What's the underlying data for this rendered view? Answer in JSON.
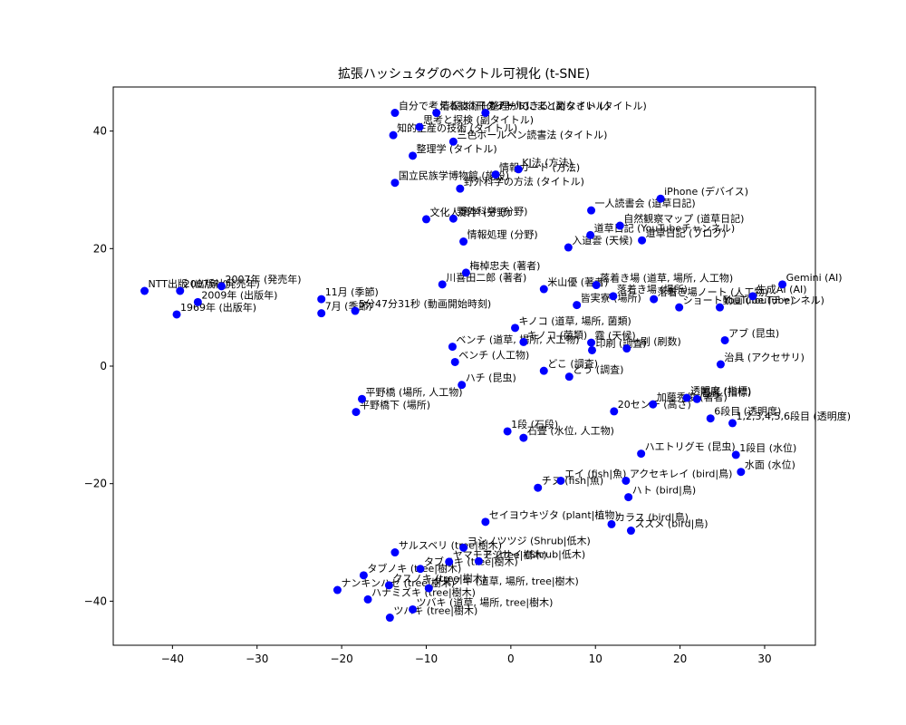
{
  "chart_data": {
    "type": "scatter",
    "title": "拡張ハッシュタグのベクトル可視化 (t-SNE)",
    "xlabel": "",
    "ylabel": "",
    "xlim": [
      -47,
      36
    ],
    "ylim": [
      -47.5,
      47.5
    ],
    "xticks": [
      -40,
      -30,
      -20,
      -10,
      0,
      10,
      20,
      30
    ],
    "yticks": [
      -40,
      -20,
      0,
      20,
      40
    ],
    "xtick_labels": [
      "−40",
      "−30",
      "−20",
      "−10",
      "0",
      "10",
      "20",
      "30"
    ],
    "ytick_labels": [
      "−40",
      "−20",
      "0",
      "20",
      "40"
    ],
    "grid": false,
    "marker_color": "#0000ff",
    "points": [
      {
        "x": -13.7,
        "y": 43.1,
        "label": "自分で考える技術 (タイトル)"
      },
      {
        "x": -8.8,
        "y": 43.1,
        "label": "情報は1冊のノートにまとめなさい (タイトル)"
      },
      {
        "x": -3.0,
        "y": 43.1,
        "label": "整理ができる (副タイトル)"
      },
      {
        "x": -10.8,
        "y": 40.7,
        "label": "思考と探検 (副タイトル)"
      },
      {
        "x": -13.9,
        "y": 39.3,
        "label": "知的生産の技術 (タイトル)"
      },
      {
        "x": -6.8,
        "y": 38.2,
        "label": "三色ボールペン読書法 (タイトル)"
      },
      {
        "x": -11.6,
        "y": 35.8,
        "label": "整理学 (タイトル)"
      },
      {
        "x": -1.8,
        "y": 32.6,
        "label": "情報カード (方法)"
      },
      {
        "x": 0.9,
        "y": 33.5,
        "label": "KJ法 (方法)"
      },
      {
        "x": -13.7,
        "y": 31.2,
        "label": "国立民族学博物館 (施設)"
      },
      {
        "x": -6.0,
        "y": 30.2,
        "label": "野外科学の方法 (タイトル)"
      },
      {
        "x": 17.7,
        "y": 28.5,
        "label": "iPhone (デバイス)"
      },
      {
        "x": 9.5,
        "y": 26.5,
        "label": "一人読書会 (道草日記)"
      },
      {
        "x": -10.0,
        "y": 25.0,
        "label": "文化人類学 (分野)"
      },
      {
        "x": -6.8,
        "y": 25.1,
        "label": "野外科学 (分野)"
      },
      {
        "x": 12.9,
        "y": 23.9,
        "label": "自然観察マップ (道草日記)"
      },
      {
        "x": 9.4,
        "y": 22.3,
        "label": "道草日記 (YouTubeチャンネル)"
      },
      {
        "x": 15.5,
        "y": 21.4,
        "label": "道草日記 (ブログ)"
      },
      {
        "x": 6.8,
        "y": 20.2,
        "label": "入道雲 (天候)"
      },
      {
        "x": -5.6,
        "y": 21.2,
        "label": "情報処理 (分野)"
      },
      {
        "x": -5.3,
        "y": 15.9,
        "label": "梅棹忠夫 (著者)"
      },
      {
        "x": -8.1,
        "y": 13.9,
        "label": "川喜田二郎 (著者)"
      },
      {
        "x": 3.9,
        "y": 13.1,
        "label": "米山優 (著者)"
      },
      {
        "x": 10.1,
        "y": 13.8,
        "label": "落着き場 (道草, 場所, 人工物)"
      },
      {
        "x": 12.1,
        "y": 11.9,
        "label": "落着き場 (場所)"
      },
      {
        "x": 16.9,
        "y": 11.4,
        "label": "落着き場ノート (人工物)"
      },
      {
        "x": 7.8,
        "y": 10.4,
        "label": "皆実寮 (場所)"
      },
      {
        "x": 19.9,
        "y": 10.0,
        "label": "ショート動画 (YouTube)"
      },
      {
        "x": 24.7,
        "y": 10.0,
        "label": "YouTube (チャンネル)"
      },
      {
        "x": 28.6,
        "y": 11.9,
        "label": "生成AI (AI)"
      },
      {
        "x": 32.1,
        "y": 13.9,
        "label": "Gemini (AI)"
      },
      {
        "x": -43.3,
        "y": 12.8,
        "label": "NTT出版 (出版社)"
      },
      {
        "x": -39.1,
        "y": 12.8,
        "label": "2007年 (発売年)"
      },
      {
        "x": -34.2,
        "y": 13.6,
        "label": "2007年 (発売年)"
      },
      {
        "x": -37.0,
        "y": 10.9,
        "label": "2009年 (出版年)"
      },
      {
        "x": -39.5,
        "y": 8.8,
        "label": "1969年 (出版年)"
      },
      {
        "x": -22.4,
        "y": 11.4,
        "label": "11月 (季節)"
      },
      {
        "x": -22.4,
        "y": 9.0,
        "label": "7月 (季節)"
      },
      {
        "x": -18.4,
        "y": 9.4,
        "label": "5分47分31秒 (動画開始時刻)"
      },
      {
        "x": 0.5,
        "y": 6.5,
        "label": "キノコ (道草, 場所, 菌類)"
      },
      {
        "x": -6.9,
        "y": 3.3,
        "label": "ベンチ (道草, 場所, 人工物)"
      },
      {
        "x": 1.5,
        "y": 4.1,
        "label": "キノコ (菌類)"
      },
      {
        "x": 9.5,
        "y": 4.0,
        "label": "霧 (天候)"
      },
      {
        "x": 9.6,
        "y": 2.7,
        "label": "印刷 (調査)"
      },
      {
        "x": 13.7,
        "y": 3.0,
        "label": "一刷 (刷数)"
      },
      {
        "x": 25.3,
        "y": 4.4,
        "label": "アブ (昆虫)"
      },
      {
        "x": -6.6,
        "y": 0.7,
        "label": "ベンチ (人工物)"
      },
      {
        "x": 3.9,
        "y": -0.8,
        "label": "どこ (調査)"
      },
      {
        "x": 6.9,
        "y": -1.8,
        "label": "どう (調査)"
      },
      {
        "x": 24.8,
        "y": 0.3,
        "label": "治具 (アクセサリ)"
      },
      {
        "x": -5.8,
        "y": -3.2,
        "label": "ハチ (昆虫)"
      },
      {
        "x": -17.6,
        "y": -5.6,
        "label": "平野橋 (場所, 人工物)"
      },
      {
        "x": -18.3,
        "y": -7.8,
        "label": "平野橋下 (場所)"
      },
      {
        "x": 20.8,
        "y": -5.4,
        "label": "透明度 (指標)"
      },
      {
        "x": 16.8,
        "y": -6.5,
        "label": "加藤秀俊 (著者)"
      },
      {
        "x": 22.0,
        "y": -5.6,
        "label": "著者 (指標)"
      },
      {
        "x": 12.2,
        "y": -7.7,
        "label": "20センチ (高さ)"
      },
      {
        "x": 23.6,
        "y": -8.9,
        "label": "6段目 (透明度)"
      },
      {
        "x": 26.2,
        "y": -9.7,
        "label": "1,2,3,4,5,6段目 (透明度)"
      },
      {
        "x": -0.4,
        "y": -11.1,
        "label": "1段 (石段)"
      },
      {
        "x": 1.5,
        "y": -12.2,
        "label": "石畳 (水位, 人工物)"
      },
      {
        "x": 15.4,
        "y": -14.9,
        "label": "ハエトリグモ (昆虫)"
      },
      {
        "x": 26.6,
        "y": -15.1,
        "label": "1段目 (水位)"
      },
      {
        "x": 27.2,
        "y": -18.0,
        "label": "水面 (水位)"
      },
      {
        "x": 5.9,
        "y": -19.5,
        "label": "エイ (fish|魚)"
      },
      {
        "x": 13.6,
        "y": -19.5,
        "label": "アクセキレイ (bird|鳥)"
      },
      {
        "x": 3.2,
        "y": -20.7,
        "label": "チヌ (fish|魚)"
      },
      {
        "x": 13.9,
        "y": -22.3,
        "label": "ハト (bird|鳥)"
      },
      {
        "x": -3.0,
        "y": -26.5,
        "label": "セイヨウキヅタ (plant|植物)"
      },
      {
        "x": 11.9,
        "y": -26.9,
        "label": "カラス (bird|鳥)"
      },
      {
        "x": 14.2,
        "y": -28.0,
        "label": "スズメ (bird|鳥)"
      },
      {
        "x": -5.6,
        "y": -30.9,
        "label": "ヨシノツツジ (Shrub|低木)"
      },
      {
        "x": -13.7,
        "y": -31.7,
        "label": "サルスベリ (tree|樹木)"
      },
      {
        "x": -3.8,
        "y": -33.2,
        "label": "アジサイ (Shrub|低木)"
      },
      {
        "x": -7.3,
        "y": -33.3,
        "label": "ヤマモモ (tree|樹木)"
      },
      {
        "x": -10.7,
        "y": -34.5,
        "label": "タブノキ (tree|樹木)"
      },
      {
        "x": -17.4,
        "y": -35.6,
        "label": "タブノキ (tree|樹木)"
      },
      {
        "x": -14.4,
        "y": -37.3,
        "label": "クスノキ (tree|樹木)"
      },
      {
        "x": -9.7,
        "y": -37.8,
        "label": "クスノキ (道草, 場所, tree|樹木)"
      },
      {
        "x": -20.5,
        "y": -38.1,
        "label": "ナンキンハゼ (tree|樹木)"
      },
      {
        "x": -16.9,
        "y": -39.7,
        "label": "ハナミズキ (tree|樹木)"
      },
      {
        "x": -11.6,
        "y": -41.4,
        "label": "ツバキ (道草, 場所, tree|樹木)"
      },
      {
        "x": -14.3,
        "y": -42.8,
        "label": "ツバキ (tree|樹木)"
      }
    ]
  }
}
